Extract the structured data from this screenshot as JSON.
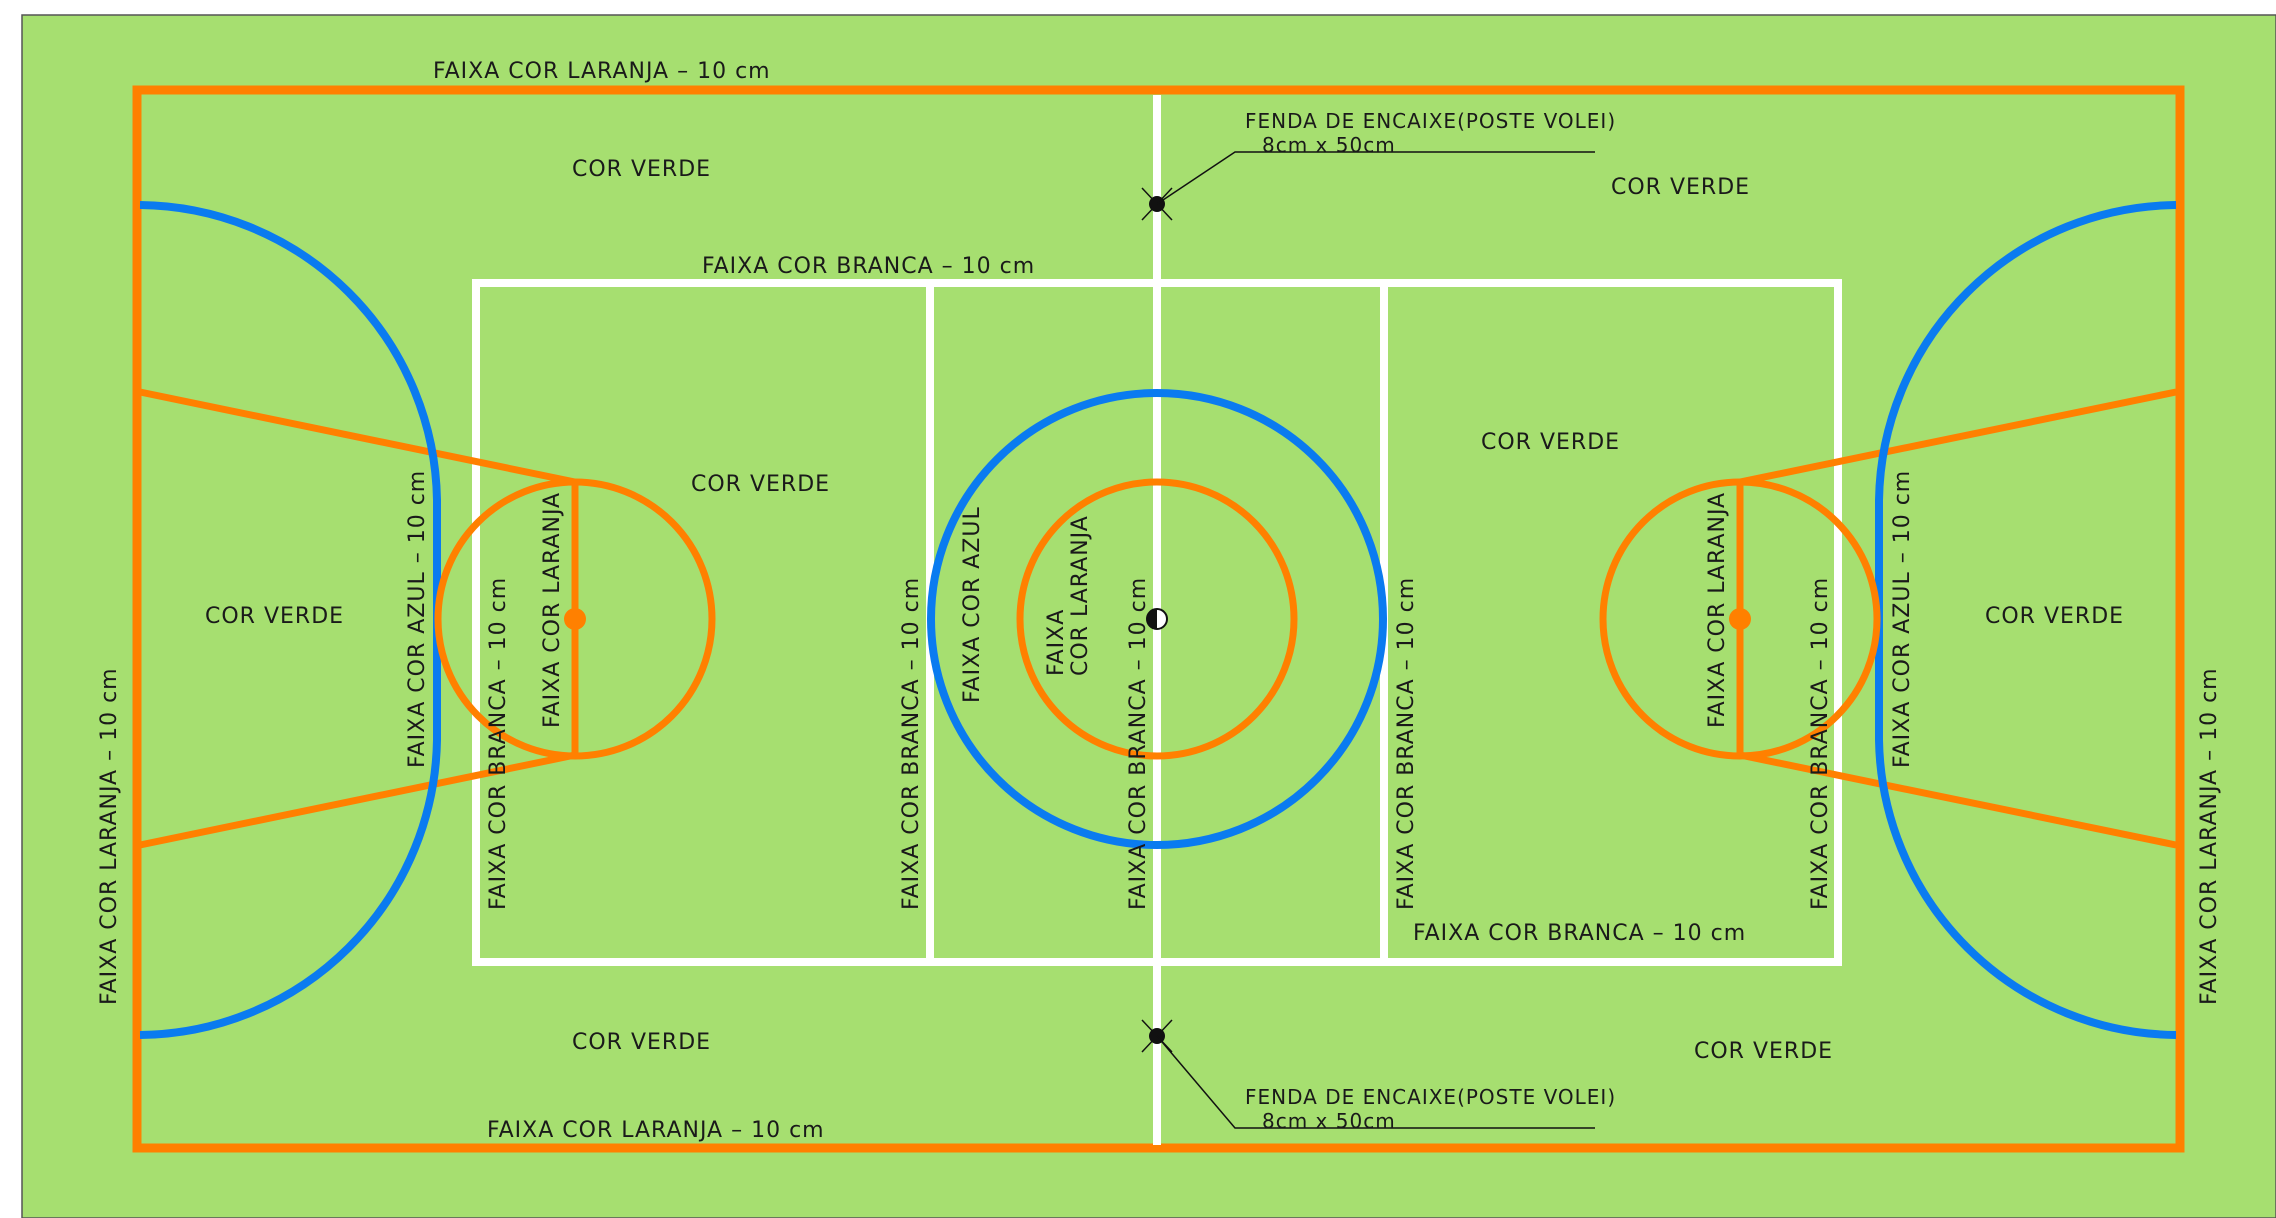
{
  "colors": {
    "field": "#a6df70",
    "orange": "#ff8000",
    "blue": "#0a7bf0",
    "white": "#ffffff",
    "ink": "#1a1a1a"
  },
  "labels": {
    "top_orange_band": "FAIXA COR LARANJA  – 10 cm",
    "bottom_orange_band": "FAIXA COR LARANJA – 10 cm",
    "left_orange_band": "FAIXA COR LARANJA – 10 cm",
    "right_orange_band": "FAIXA COR LARANJA – 10 cm",
    "top_white_band": "FAIXA COR BRANCA – 10 cm",
    "bottom_white_band": "FAIXA COR BRANCA – 10 cm",
    "green_top_left": "COR VERDE",
    "green_top_right": "COR VERDE",
    "green_left": "COR VERDE",
    "green_right": "COR VERDE",
    "green_key_left": "COR VERDE",
    "green_key_right": "COR VERDE",
    "green_bottom_left": "COR VERDE",
    "green_bottom_right": "COR VERDE",
    "slot_top_line1": "FENDA DE ENCAIXE(POSTE VOLEI)",
    "slot_top_line2": "8cm x 50cm",
    "slot_bottom_line1": "FENDA DE ENCAIXE(POSTE VOLEI)",
    "slot_bottom_line2": "8cm x 50cm",
    "left_blue_band": "FAIXA COR AZUL – 10 cm",
    "right_blue_band": "FAIXA COR AZUL – 10 cm",
    "left_white_band_v": "FAIXA COR BRANCA – 10 cm",
    "right_white_band_v": "FAIXA COR BRANCA – 10 cm",
    "left_orange_key": "FAIXA COR LARANJA",
    "right_orange_key": "FAIXA COR LARANJA",
    "mid_left_white": "FAIXA COR BRANCA – 10 cm",
    "mid_right_white": "FAIXA COR BRANCA – 10 cm",
    "center_white": "FAIXA COR BRANCA – 10 cm",
    "center_blue": "FAIXA COR AZUL",
    "center_orange_line1": "FAIXA",
    "center_orange_line2": "COR LARANJA"
  }
}
